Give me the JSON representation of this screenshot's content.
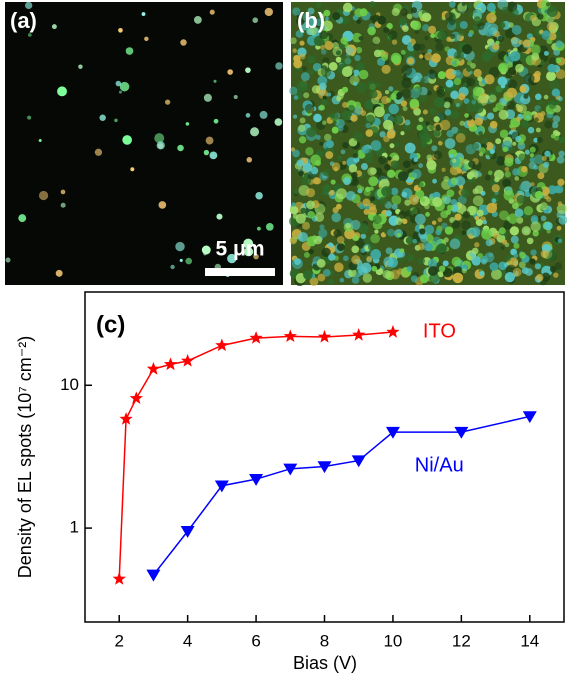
{
  "panels": {
    "a": {
      "label": "(a)",
      "scale_bar": "5 μm"
    },
    "b": {
      "label": "(b)"
    }
  },
  "chart_data": {
    "type": "line",
    "panel_label": "(c)",
    "x_label": "Bias (V)",
    "y_label": "Density of EL spots (10⁷ cm⁻²)",
    "xlim": [
      1,
      15
    ],
    "xticks": [
      2,
      4,
      6,
      8,
      10,
      12,
      14
    ],
    "ylim": [
      0.22,
      45
    ],
    "yticks": [
      1,
      10
    ],
    "log_y": true,
    "series": [
      {
        "name": "ITO",
        "color": "#ff0000",
        "marker": "star",
        "x": [
          2,
          2.2,
          2.5,
          3,
          3.5,
          4,
          5,
          6,
          7,
          8,
          9,
          10
        ],
        "values": [
          0.44,
          5.8,
          8.1,
          13,
          14,
          14.8,
          19,
          21.4,
          22,
          21.8,
          22.5,
          23.6
        ]
      },
      {
        "name": "Ni/Au",
        "color": "#0000ff",
        "marker": "triangle-down",
        "x": [
          3,
          4,
          5,
          6,
          7,
          8,
          9,
          10,
          12,
          14
        ],
        "values": [
          0.47,
          0.95,
          1.98,
          2.2,
          2.6,
          2.7,
          2.97,
          4.7,
          4.7,
          6.05
        ]
      }
    ]
  }
}
